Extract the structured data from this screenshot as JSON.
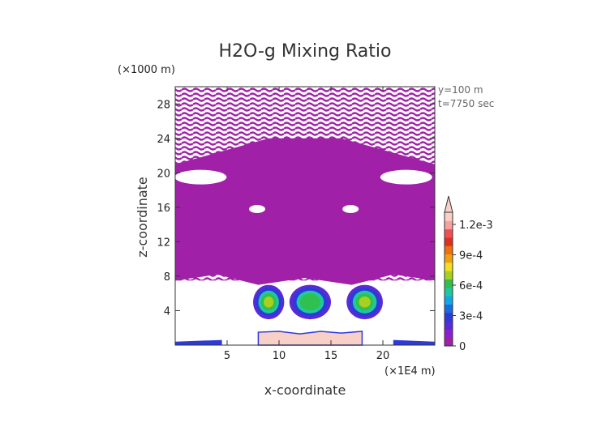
{
  "chart_data": {
    "type": "heatmap",
    "title": "H2O-g Mixing Ratio",
    "xlabel": "x-coordinate",
    "ylabel": "z-coordinate",
    "x_unit": "(×1E4 m)",
    "y_unit": "(×1000 m)",
    "xlim": [
      0,
      25
    ],
    "ylim": [
      0,
      30
    ],
    "x_ticks": [
      5,
      10,
      15,
      20
    ],
    "x_tick_labels": [
      "5",
      "10",
      "15",
      "20"
    ],
    "y_ticks": [
      4,
      8,
      12,
      16,
      20,
      24,
      28
    ],
    "y_tick_labels": [
      "4",
      "8",
      "12",
      "16",
      "20",
      "24",
      "28"
    ],
    "annotations": [
      "y=100 m",
      "t=7750 sec"
    ],
    "colorbar": {
      "min": 0,
      "max": 0.00132,
      "tick_values": [
        0,
        0.0003,
        0.0006,
        0.0009,
        0.0012
      ],
      "tick_labels": [
        "0",
        "3e-4",
        "6e-4",
        "9e-4",
        "1.2e-3"
      ],
      "colors": [
        "#a020a8",
        "#8b1fd0",
        "#5a2ad8",
        "#2c3ad8",
        "#1a6ae0",
        "#12a8e8",
        "#20c8a0",
        "#30c050",
        "#a8d020",
        "#f0e020",
        "#f0a010",
        "#f07010",
        "#e03020",
        "#f05050",
        "#f8a0a0",
        "#f8d0c8"
      ]
    },
    "regions": [
      {
        "name": "upper moist layer",
        "value": 3e-05,
        "x": [
          0,
          25
        ],
        "z": [
          7.5,
          30
        ]
      },
      {
        "name": "left core",
        "value": 0.0007,
        "x": [
          7.5,
          10.5
        ],
        "z": [
          3,
          7
        ]
      },
      {
        "name": "centre core",
        "value": 0.0006,
        "x": [
          11,
          15
        ],
        "z": [
          3,
          7
        ]
      },
      {
        "name": "right core",
        "value": 0.0007,
        "x": [
          16.5,
          20
        ],
        "z": [
          3,
          7
        ]
      },
      {
        "name": "surface layer",
        "value": 0.0013,
        "x": [
          8,
          18
        ],
        "z": [
          0,
          1.5
        ]
      }
    ]
  }
}
